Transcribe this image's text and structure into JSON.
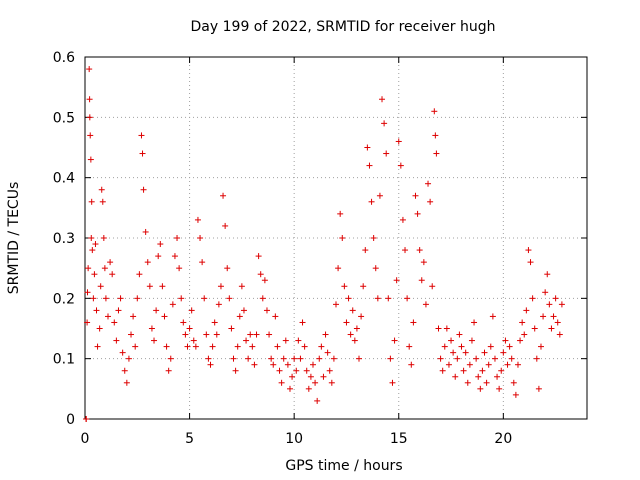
{
  "chart_data": {
    "type": "scatter",
    "title": "Day 199 of 2022, SRMTID for receiver hugh",
    "xlabel": "GPS time / hours",
    "ylabel": "SRMTID / TECUs",
    "xlim": [
      0,
      24
    ],
    "ylim": [
      0,
      0.6
    ],
    "x_ticks": [
      0,
      5,
      10,
      15,
      20
    ],
    "x_tick_labels": [
      "0",
      "5",
      "10",
      "15",
      "20"
    ],
    "y_ticks": [
      0,
      0.1,
      0.2,
      0.3,
      0.4,
      0.5,
      0.6
    ],
    "y_tick_labels": [
      "0",
      "0.1",
      "0.2",
      "0.3",
      "0.4",
      "0.5",
      "0.6"
    ],
    "grid": true,
    "marker": "+",
    "marker_color": "#dd0000",
    "series": [
      {
        "name": "SRMTID",
        "points": [
          [
            0.05,
            0.0
          ],
          [
            0.06,
            0.0
          ],
          [
            0.1,
            0.16
          ],
          [
            0.12,
            0.21
          ],
          [
            0.15,
            0.25
          ],
          [
            0.2,
            0.58
          ],
          [
            0.22,
            0.53
          ],
          [
            0.23,
            0.5
          ],
          [
            0.25,
            0.47
          ],
          [
            0.28,
            0.43
          ],
          [
            0.3,
            0.3
          ],
          [
            0.32,
            0.36
          ],
          [
            0.35,
            0.28
          ],
          [
            0.4,
            0.2
          ],
          [
            0.45,
            0.24
          ],
          [
            0.5,
            0.29
          ],
          [
            0.55,
            0.18
          ],
          [
            0.6,
            0.12
          ],
          [
            0.7,
            0.15
          ],
          [
            0.75,
            0.22
          ],
          [
            0.8,
            0.38
          ],
          [
            0.85,
            0.36
          ],
          [
            0.9,
            0.3
          ],
          [
            0.95,
            0.25
          ],
          [
            1.0,
            0.2
          ],
          [
            1.1,
            0.17
          ],
          [
            1.2,
            0.26
          ],
          [
            1.3,
            0.24
          ],
          [
            1.4,
            0.16
          ],
          [
            1.5,
            0.13
          ],
          [
            1.6,
            0.18
          ],
          [
            1.7,
            0.2
          ],
          [
            1.8,
            0.11
          ],
          [
            1.9,
            0.08
          ],
          [
            2.0,
            0.06
          ],
          [
            2.1,
            0.1
          ],
          [
            2.2,
            0.14
          ],
          [
            2.3,
            0.17
          ],
          [
            2.4,
            0.12
          ],
          [
            2.5,
            0.2
          ],
          [
            2.6,
            0.24
          ],
          [
            2.7,
            0.47
          ],
          [
            2.75,
            0.44
          ],
          [
            2.8,
            0.38
          ],
          [
            2.9,
            0.31
          ],
          [
            3.0,
            0.26
          ],
          [
            3.1,
            0.22
          ],
          [
            3.2,
            0.15
          ],
          [
            3.3,
            0.13
          ],
          [
            3.4,
            0.18
          ],
          [
            3.5,
            0.27
          ],
          [
            3.6,
            0.29
          ],
          [
            3.7,
            0.22
          ],
          [
            3.8,
            0.17
          ],
          [
            3.9,
            0.12
          ],
          [
            4.0,
            0.08
          ],
          [
            4.1,
            0.1
          ],
          [
            4.2,
            0.19
          ],
          [
            4.3,
            0.27
          ],
          [
            4.4,
            0.3
          ],
          [
            4.5,
            0.25
          ],
          [
            4.6,
            0.2
          ],
          [
            4.7,
            0.16
          ],
          [
            4.8,
            0.14
          ],
          [
            4.9,
            0.12
          ],
          [
            5.0,
            0.15
          ],
          [
            5.1,
            0.18
          ],
          [
            5.2,
            0.13
          ],
          [
            5.3,
            0.12
          ],
          [
            5.4,
            0.33
          ],
          [
            5.5,
            0.3
          ],
          [
            5.6,
            0.26
          ],
          [
            5.7,
            0.2
          ],
          [
            5.8,
            0.14
          ],
          [
            5.9,
            0.1
          ],
          [
            6.0,
            0.09
          ],
          [
            6.1,
            0.12
          ],
          [
            6.2,
            0.16
          ],
          [
            6.3,
            0.14
          ],
          [
            6.4,
            0.19
          ],
          [
            6.5,
            0.22
          ],
          [
            6.6,
            0.37
          ],
          [
            6.7,
            0.32
          ],
          [
            6.8,
            0.25
          ],
          [
            6.9,
            0.2
          ],
          [
            7.0,
            0.15
          ],
          [
            7.1,
            0.1
          ],
          [
            7.2,
            0.08
          ],
          [
            7.3,
            0.12
          ],
          [
            7.4,
            0.17
          ],
          [
            7.5,
            0.22
          ],
          [
            7.6,
            0.18
          ],
          [
            7.7,
            0.13
          ],
          [
            7.8,
            0.1
          ],
          [
            7.9,
            0.14
          ],
          [
            8.0,
            0.12
          ],
          [
            8.1,
            0.09
          ],
          [
            8.2,
            0.14
          ],
          [
            8.3,
            0.27
          ],
          [
            8.4,
            0.24
          ],
          [
            8.5,
            0.2
          ],
          [
            8.6,
            0.23
          ],
          [
            8.7,
            0.18
          ],
          [
            8.8,
            0.14
          ],
          [
            8.9,
            0.1
          ],
          [
            9.0,
            0.09
          ],
          [
            9.1,
            0.17
          ],
          [
            9.2,
            0.12
          ],
          [
            9.3,
            0.08
          ],
          [
            9.4,
            0.06
          ],
          [
            9.5,
            0.1
          ],
          [
            9.6,
            0.13
          ],
          [
            9.7,
            0.09
          ],
          [
            9.8,
            0.05
          ],
          [
            9.9,
            0.07
          ],
          [
            10.0,
            0.1
          ],
          [
            10.1,
            0.08
          ],
          [
            10.2,
            0.13
          ],
          [
            10.3,
            0.1
          ],
          [
            10.4,
            0.16
          ],
          [
            10.5,
            0.12
          ],
          [
            10.6,
            0.08
          ],
          [
            10.7,
            0.05
          ],
          [
            10.8,
            0.07
          ],
          [
            10.9,
            0.09
          ],
          [
            11.0,
            0.06
          ],
          [
            11.1,
            0.03
          ],
          [
            11.2,
            0.1
          ],
          [
            11.3,
            0.12
          ],
          [
            11.4,
            0.07
          ],
          [
            11.5,
            0.14
          ],
          [
            11.6,
            0.11
          ],
          [
            11.7,
            0.08
          ],
          [
            11.8,
            0.06
          ],
          [
            11.9,
            0.1
          ],
          [
            12.0,
            0.19
          ],
          [
            12.1,
            0.25
          ],
          [
            12.2,
            0.34
          ],
          [
            12.3,
            0.3
          ],
          [
            12.4,
            0.22
          ],
          [
            12.5,
            0.16
          ],
          [
            12.6,
            0.2
          ],
          [
            12.7,
            0.14
          ],
          [
            12.8,
            0.18
          ],
          [
            12.9,
            0.13
          ],
          [
            13.0,
            0.15
          ],
          [
            13.1,
            0.1
          ],
          [
            13.2,
            0.17
          ],
          [
            13.3,
            0.22
          ],
          [
            13.4,
            0.28
          ],
          [
            13.5,
            0.45
          ],
          [
            13.6,
            0.42
          ],
          [
            13.7,
            0.36
          ],
          [
            13.8,
            0.3
          ],
          [
            13.9,
            0.25
          ],
          [
            14.0,
            0.2
          ],
          [
            14.1,
            0.37
          ],
          [
            14.2,
            0.53
          ],
          [
            14.3,
            0.49
          ],
          [
            14.4,
            0.44
          ],
          [
            14.5,
            0.2
          ],
          [
            14.6,
            0.1
          ],
          [
            14.7,
            0.06
          ],
          [
            14.8,
            0.13
          ],
          [
            14.9,
            0.23
          ],
          [
            15.0,
            0.46
          ],
          [
            15.1,
            0.42
          ],
          [
            15.2,
            0.33
          ],
          [
            15.3,
            0.28
          ],
          [
            15.4,
            0.2
          ],
          [
            15.5,
            0.12
          ],
          [
            15.6,
            0.09
          ],
          [
            15.7,
            0.16
          ],
          [
            15.8,
            0.37
          ],
          [
            15.9,
            0.34
          ],
          [
            16.0,
            0.28
          ],
          [
            16.1,
            0.23
          ],
          [
            16.2,
            0.26
          ],
          [
            16.3,
            0.19
          ],
          [
            16.4,
            0.39
          ],
          [
            16.5,
            0.36
          ],
          [
            16.6,
            0.22
          ],
          [
            16.7,
            0.51
          ],
          [
            16.75,
            0.47
          ],
          [
            16.8,
            0.44
          ],
          [
            16.9,
            0.15
          ],
          [
            17.0,
            0.1
          ],
          [
            17.1,
            0.08
          ],
          [
            17.2,
            0.12
          ],
          [
            17.3,
            0.15
          ],
          [
            17.4,
            0.09
          ],
          [
            17.5,
            0.13
          ],
          [
            17.6,
            0.11
          ],
          [
            17.7,
            0.07
          ],
          [
            17.8,
            0.1
          ],
          [
            17.9,
            0.14
          ],
          [
            18.0,
            0.12
          ],
          [
            18.1,
            0.08
          ],
          [
            18.2,
            0.11
          ],
          [
            18.3,
            0.06
          ],
          [
            18.4,
            0.09
          ],
          [
            18.5,
            0.13
          ],
          [
            18.6,
            0.16
          ],
          [
            18.7,
            0.1
          ],
          [
            18.8,
            0.07
          ],
          [
            18.9,
            0.05
          ],
          [
            19.0,
            0.08
          ],
          [
            19.1,
            0.11
          ],
          [
            19.2,
            0.06
          ],
          [
            19.3,
            0.09
          ],
          [
            19.4,
            0.12
          ],
          [
            19.5,
            0.17
          ],
          [
            19.6,
            0.1
          ],
          [
            19.7,
            0.07
          ],
          [
            19.8,
            0.05
          ],
          [
            19.9,
            0.08
          ],
          [
            20.0,
            0.11
          ],
          [
            20.1,
            0.13
          ],
          [
            20.2,
            0.09
          ],
          [
            20.3,
            0.12
          ],
          [
            20.4,
            0.1
          ],
          [
            20.5,
            0.06
          ],
          [
            20.6,
            0.04
          ],
          [
            20.7,
            0.09
          ],
          [
            20.8,
            0.13
          ],
          [
            20.9,
            0.16
          ],
          [
            21.0,
            0.14
          ],
          [
            21.1,
            0.18
          ],
          [
            21.2,
            0.28
          ],
          [
            21.3,
            0.26
          ],
          [
            21.4,
            0.2
          ],
          [
            21.5,
            0.15
          ],
          [
            21.6,
            0.1
          ],
          [
            21.7,
            0.05
          ],
          [
            21.8,
            0.12
          ],
          [
            21.9,
            0.17
          ],
          [
            22.0,
            0.21
          ],
          [
            22.1,
            0.24
          ],
          [
            22.2,
            0.19
          ],
          [
            22.3,
            0.15
          ],
          [
            22.4,
            0.17
          ],
          [
            22.5,
            0.2
          ],
          [
            22.6,
            0.16
          ],
          [
            22.7,
            0.14
          ],
          [
            22.8,
            0.19
          ]
        ]
      }
    ]
  }
}
